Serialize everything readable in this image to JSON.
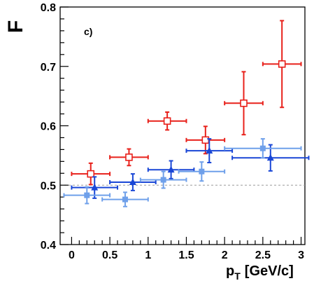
{
  "chart_data": {
    "type": "scatter",
    "ylabel": "F",
    "xlabel_main": "p",
    "xlabel_sub": "T",
    "xlabel_unit": "[GeV/c]",
    "annotation": "c)",
    "xlim": [
      -0.15,
      3.05
    ],
    "ylim": [
      0.4,
      0.8
    ],
    "x_ticks": [
      0,
      0.5,
      1,
      1.5,
      2,
      2.5,
      3
    ],
    "x_tick_labels": [
      "0",
      "0.5",
      "1",
      "1.5",
      "2",
      "2.5",
      "3"
    ],
    "y_ticks": [
      0.4,
      0.5,
      0.6,
      0.7,
      0.8
    ],
    "y_tick_labels": [
      "0.4",
      "0.5",
      "0.6",
      "0.7",
      "0.8"
    ],
    "reference_line": 0.5,
    "grid": false,
    "series": [
      {
        "marker": "open-square",
        "color": "#e8211b",
        "points": [
          {
            "x": 0.25,
            "y": 0.519,
            "xerr": 0.25,
            "yerr": 0.018
          },
          {
            "x": 0.75,
            "y": 0.547,
            "xerr": 0.25,
            "yerr": 0.014
          },
          {
            "x": 1.25,
            "y": 0.608,
            "xerr": 0.25,
            "yerr": 0.015
          },
          {
            "x": 1.75,
            "y": 0.576,
            "xerr": 0.25,
            "yerr": 0.023
          },
          {
            "x": 2.25,
            "y": 0.638,
            "xerr": 0.25,
            "yerr": 0.053
          },
          {
            "x": 2.75,
            "y": 0.704,
            "xerr": 0.25,
            "yerr": 0.073
          }
        ]
      },
      {
        "marker": "filled-triangle",
        "color": "#1a47d6",
        "points": [
          {
            "x": 0.3,
            "y": 0.496,
            "xerr": 0.3,
            "yerr": 0.018
          },
          {
            "x": 0.8,
            "y": 0.505,
            "xerr": 0.3,
            "yerr": 0.014
          },
          {
            "x": 1.3,
            "y": 0.526,
            "xerr": 0.3,
            "yerr": 0.015
          },
          {
            "x": 1.8,
            "y": 0.558,
            "xerr": 0.3,
            "yerr": 0.02
          },
          {
            "x": 2.6,
            "y": 0.546,
            "xerr": 0.5,
            "yerr": 0.022
          }
        ]
      },
      {
        "marker": "filled-square",
        "color": "#6fa0ea",
        "points": [
          {
            "x": 0.2,
            "y": 0.483,
            "xerr": 0.3,
            "yerr": 0.014
          },
          {
            "x": 0.7,
            "y": 0.476,
            "xerr": 0.3,
            "yerr": 0.012
          },
          {
            "x": 1.2,
            "y": 0.509,
            "xerr": 0.3,
            "yerr": 0.014
          },
          {
            "x": 1.7,
            "y": 0.523,
            "xerr": 0.3,
            "yerr": 0.016
          },
          {
            "x": 2.5,
            "y": 0.562,
            "xerr": 0.5,
            "yerr": 0.016
          }
        ]
      }
    ]
  }
}
